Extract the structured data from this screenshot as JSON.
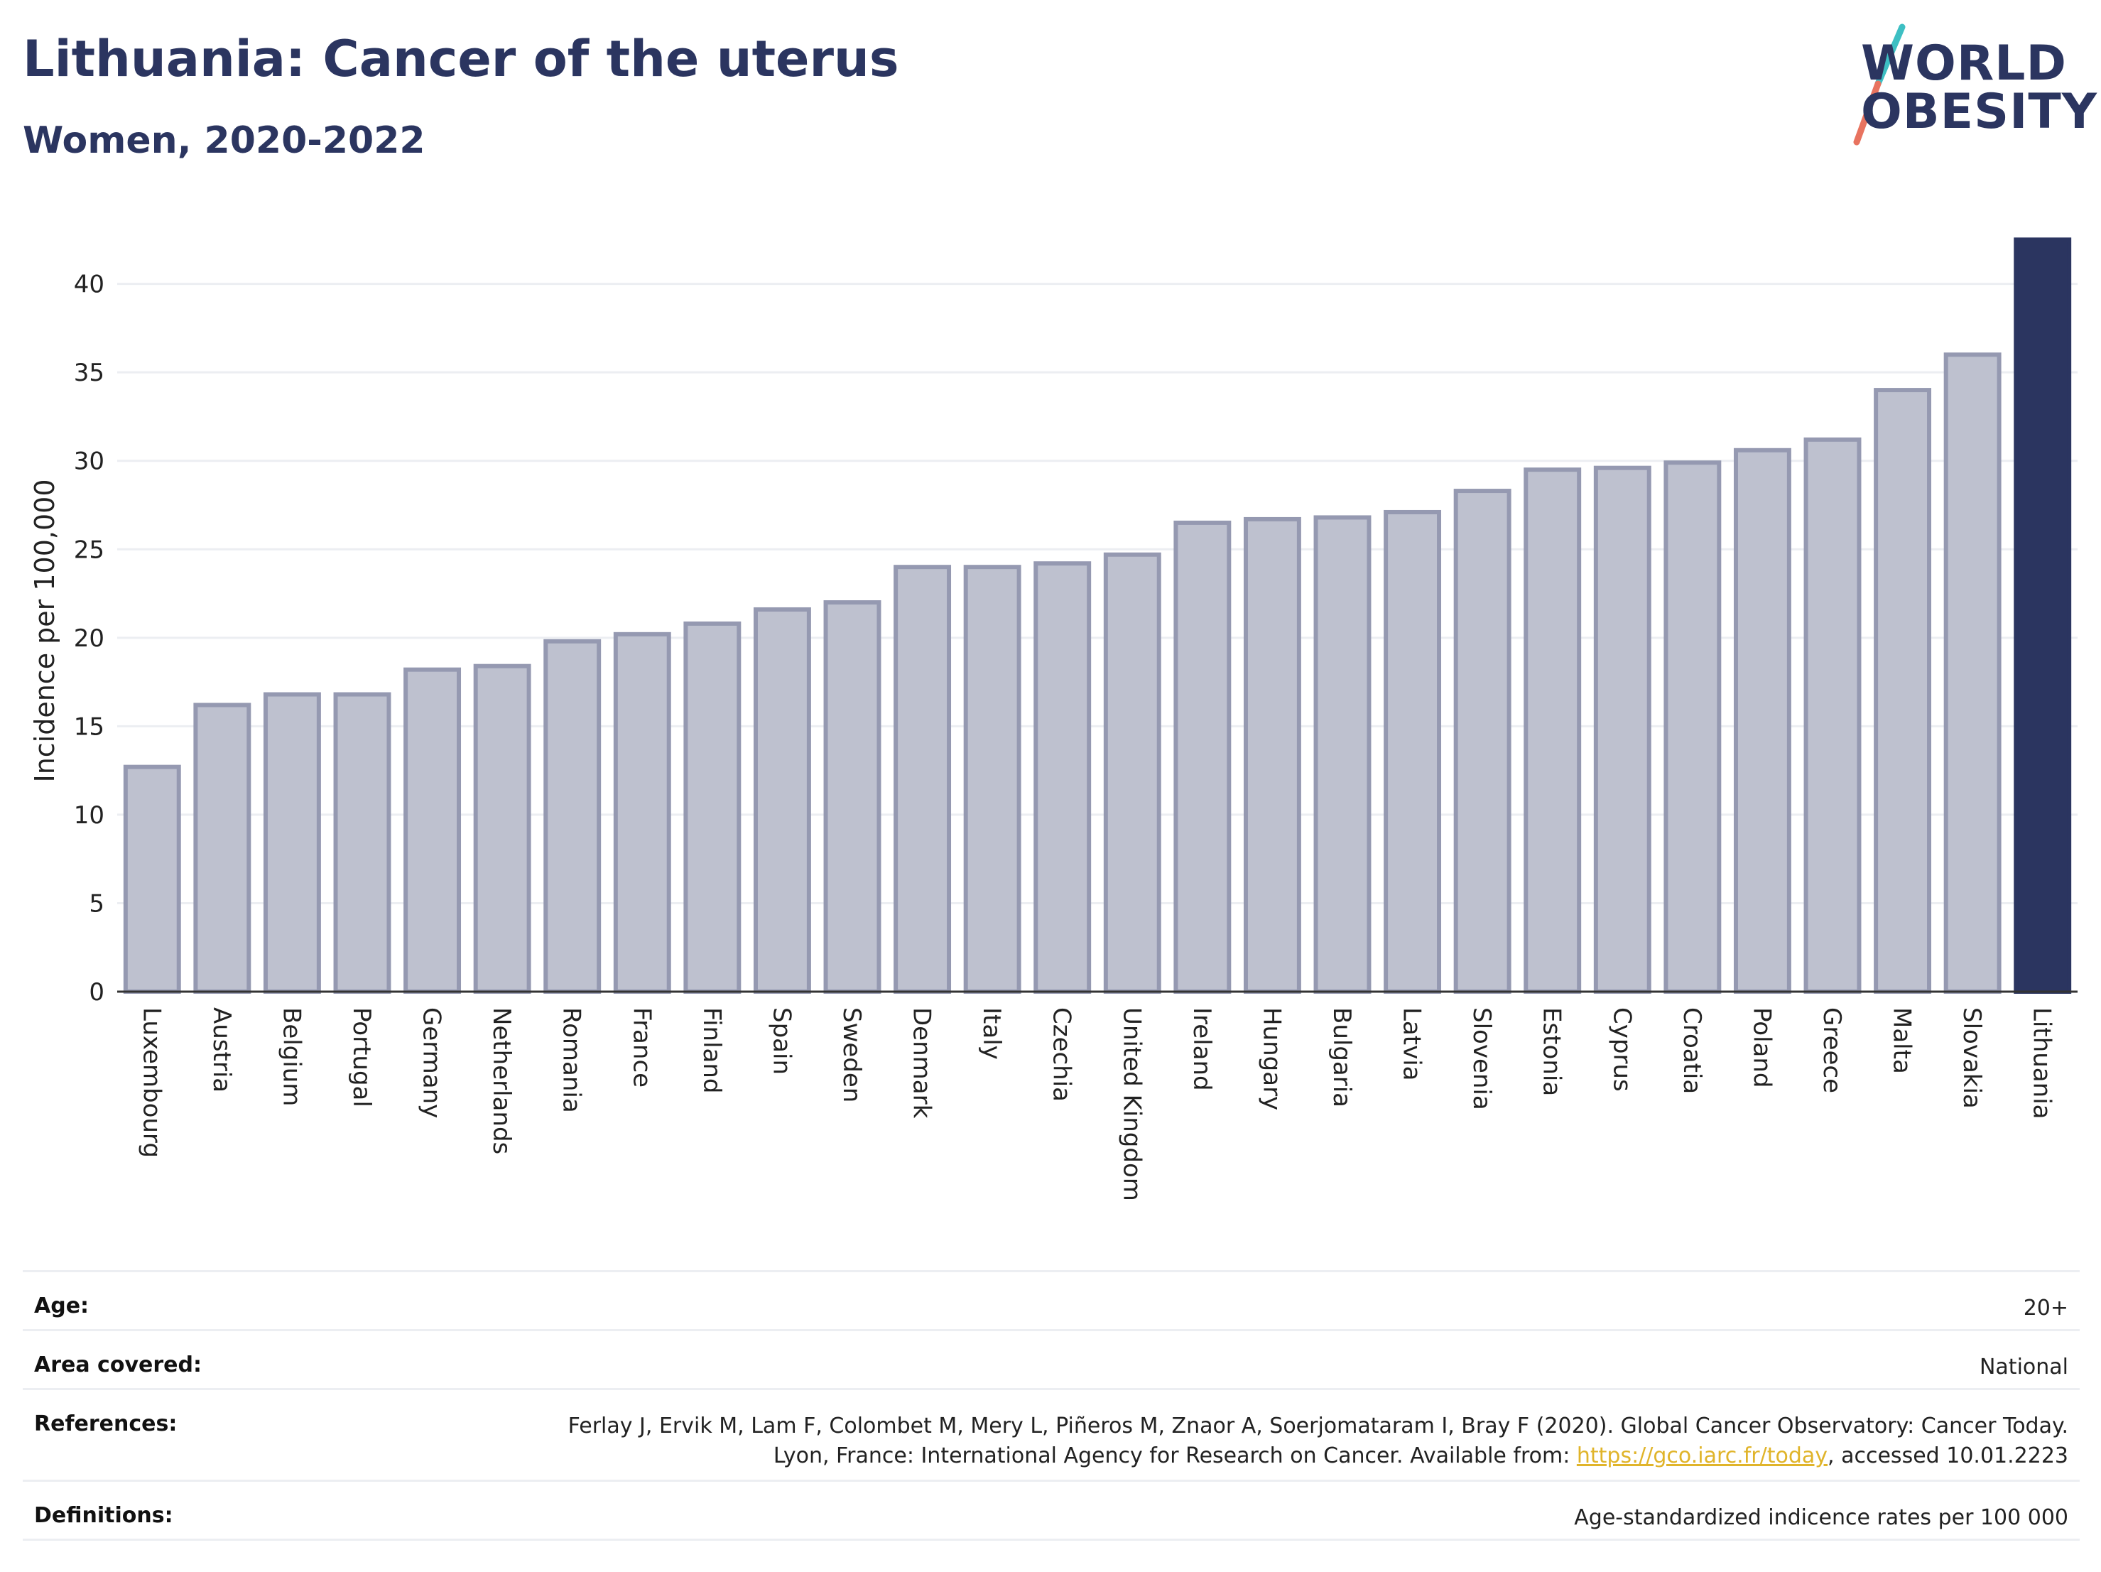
{
  "title": "Lithuania: Cancer of the uterus",
  "subtitle": "Women, 2020-2022",
  "logo": {
    "line1": "WORLD",
    "line2": "OBESITY"
  },
  "colors": {
    "highlight": "#2b3560",
    "bar_fill": "#bec1cf",
    "bar_stroke": "#9599b1",
    "gridline": "#eceef2",
    "link": "#e0b42a"
  },
  "chart_data": {
    "type": "bar",
    "title": "Lithuania: Cancer of the uterus",
    "subtitle": "Women, 2020-2022",
    "ylabel": "Incidence per 100,000",
    "xlabel": "",
    "ylim": [
      0,
      44
    ],
    "yticks": [
      0,
      5,
      10,
      15,
      20,
      25,
      30,
      35,
      40
    ],
    "grid": true,
    "highlight": "Lithuania",
    "categories": [
      "Luxembourg",
      "Austria",
      "Belgium",
      "Portugal",
      "Germany",
      "Netherlands",
      "Romania",
      "France",
      "Finland",
      "Spain",
      "Sweden",
      "Denmark",
      "Italy",
      "Czechia",
      "United Kingdom",
      "Ireland",
      "Hungary",
      "Bulgaria",
      "Latvia",
      "Slovenia",
      "Estonia",
      "Cyprus",
      "Croatia",
      "Poland",
      "Greece",
      "Malta",
      "Slovakia",
      "Lithuania"
    ],
    "values": [
      12.7,
      16.2,
      16.8,
      16.8,
      18.2,
      18.4,
      19.8,
      20.2,
      20.8,
      21.6,
      22.0,
      24.0,
      24.0,
      24.2,
      24.7,
      26.5,
      26.7,
      26.8,
      27.1,
      28.3,
      29.5,
      29.6,
      29.9,
      30.6,
      31.2,
      34.0,
      36.0,
      42.5
    ]
  },
  "info": {
    "age_label": "Age:",
    "age_value": "20+",
    "area_label": "Area covered:",
    "area_value": "National",
    "references_label": "References:",
    "references_text1": "Ferlay J, Ervik M, Lam F, Colombet M, Mery L, Piñeros M, Znaor A, Soerjomataram I, Bray F (2020). Global Cancer Observatory: Cancer Today. Lyon, France: International Agency for Research on Cancer. Available from: ",
    "references_link": "https://gco.iarc.fr/today",
    "references_text2": ", accessed 10.01.2223",
    "definitions_label": "Definitions:",
    "definitions_value": "Age-standardized indicence rates per 100 000"
  }
}
